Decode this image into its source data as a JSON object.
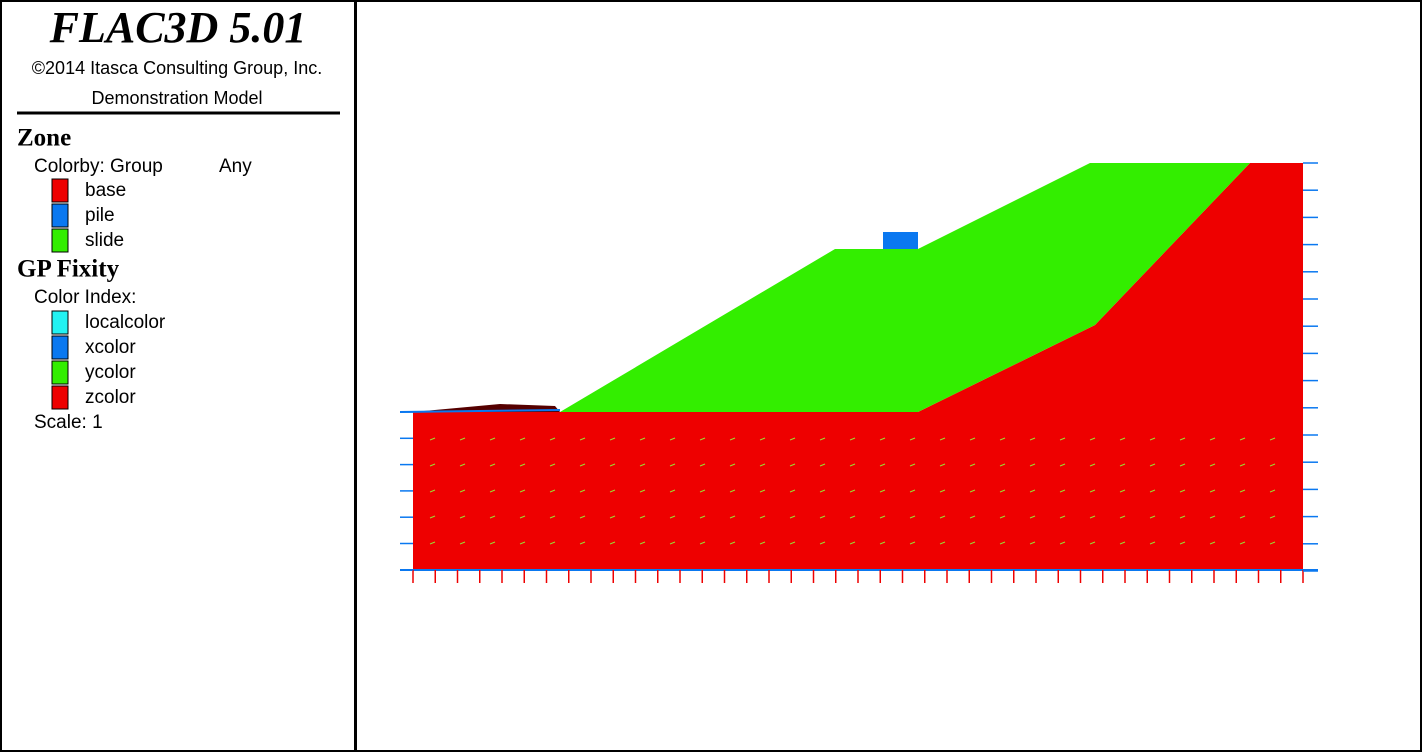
{
  "header": {
    "title": "FLAC3D 5.01",
    "copyright": "©2014 Itasca Consulting Group, Inc.",
    "model": "Demonstration Model"
  },
  "legend": {
    "zone": {
      "title": "Zone",
      "colorby": "Colorby: Group",
      "scope": "Any",
      "items": [
        {
          "label": "base",
          "color": "#ee0000"
        },
        {
          "label": "pile",
          "color": "#0a78f0"
        },
        {
          "label": "slide",
          "color": "#33ee00"
        }
      ]
    },
    "fixity": {
      "title": "GP Fixity",
      "index": "Color Index:",
      "items": [
        {
          "label": "localcolor",
          "color": "#22f2f2"
        },
        {
          "label": "xcolor",
          "color": "#0a78f0"
        },
        {
          "label": "ycolor",
          "color": "#33ee00"
        },
        {
          "label": "zcolor",
          "color": "#ee0000"
        }
      ],
      "scale": "Scale: 1"
    }
  }
}
